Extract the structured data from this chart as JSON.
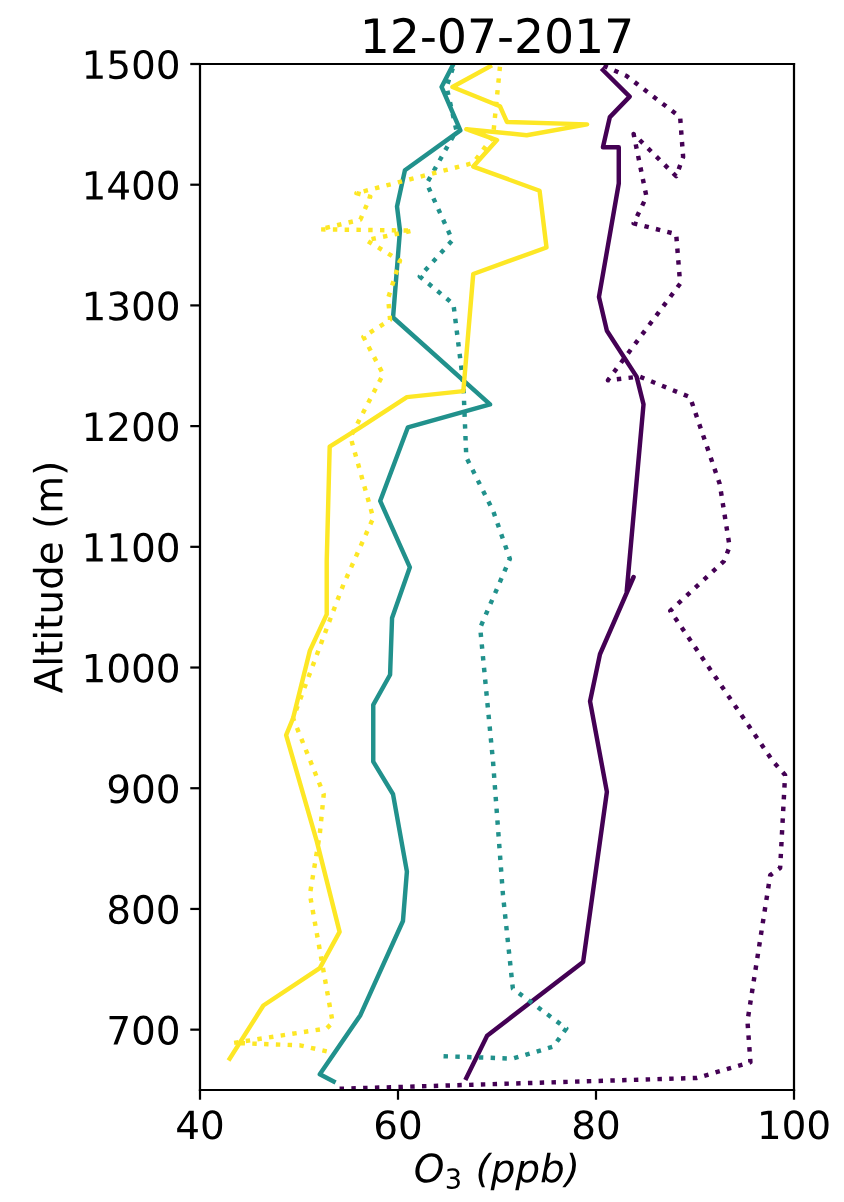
{
  "chart_data": {
    "type": "line",
    "title": "12-07-2017",
    "xlabel": "O$_{3}$ (ppb)",
    "ylabel": "Altitude (m)",
    "xlim": [
      40,
      100
    ],
    "xticks": [
      40,
      60,
      80,
      100
    ],
    "ylim": [
      650,
      1500
    ],
    "yticks": [
      700,
      800,
      900,
      1000,
      1100,
      1200,
      1300,
      1400,
      1500
    ],
    "grid": false,
    "legend": false,
    "marker": "none",
    "series": [
      {
        "color": "#440154",
        "line_style": "solid",
        "x": [
          66.9,
          69.0,
          78.7,
          81.1,
          79.4,
          80.4,
          83.8,
          83.1,
          84.8,
          84.1,
          81.1,
          80.3,
          82.3,
          82.3,
          80.7,
          81.4,
          83.4,
          80.7
        ],
        "values": [
          660,
          695,
          756,
          897,
          972,
          1011,
          1075,
          1063,
          1218,
          1241,
          1279,
          1307,
          1401,
          1431,
          1431,
          1456,
          1473,
          1495
        ]
      },
      {
        "color": "#440154",
        "line_style": "dotted",
        "x": [
          54.1,
          90.2,
          95.6,
          95.3,
          97.6,
          98.6,
          99.1,
          97.9,
          87.5,
          92.9,
          93.5,
          92.5,
          89.5,
          84.4,
          81.2,
          88.5,
          88.1,
          83.8,
          85.1,
          83.8,
          88.1,
          88.8,
          88.5,
          83.1,
          80.4
        ],
        "values": [
          651,
          660,
          673,
          707,
          828,
          834,
          911,
          922,
          1047,
          1088,
          1100,
          1152,
          1224,
          1241,
          1238,
          1318,
          1359,
          1368,
          1390,
          1442,
          1407,
          1423,
          1456,
          1490,
          1500
        ]
      },
      {
        "color": "#21918c",
        "line_style": "solid",
        "x": [
          53.5,
          52.1,
          56.2,
          60.5,
          60.9,
          59.5,
          57.5,
          57.5,
          59.2,
          59.4,
          61.2,
          58.2,
          61.0,
          69.3,
          59.5,
          60.2,
          59.9,
          60.7,
          66.3,
          64.4,
          65.6
        ],
        "values": [
          657,
          663,
          712,
          790,
          831,
          895,
          922,
          969,
          994,
          1041,
          1083,
          1138,
          1199,
          1218,
          1290,
          1362,
          1382,
          1412,
          1445,
          1481,
          1500
        ]
      },
      {
        "color": "#21918c",
        "line_style": "dotted",
        "x": [
          64.6,
          71.6,
          75.7,
          77.0,
          71.6,
          70.6,
          69.6,
          68.3,
          71.3,
          69.6,
          66.9,
          66.6,
          65.6,
          62.2,
          65.5,
          62.9,
          65.9,
          64.9,
          65.6
        ],
        "values": [
          678,
          676,
          686,
          701,
          734,
          812,
          922,
          1033,
          1090,
          1130,
          1174,
          1235,
          1301,
          1324,
          1354,
          1401,
          1445,
          1481,
          1498
        ]
      },
      {
        "color": "#fde725",
        "line_style": "solid",
        "x": [
          43.0,
          46.4,
          52.1,
          54.1,
          51.8,
          48.7,
          49.4,
          51.1,
          52.8,
          52.8,
          53.1,
          56.2,
          60.9,
          66.6,
          67.6,
          75.0,
          74.3,
          67.6,
          70.0,
          66.9,
          73.0,
          79.1,
          71.0,
          70.3,
          65.5,
          69.3
        ],
        "values": [
          676,
          720,
          751,
          781,
          856,
          944,
          958,
          1014,
          1044,
          1088,
          1183,
          1199,
          1224,
          1229,
          1326,
          1348,
          1395,
          1415,
          1437,
          1446,
          1441,
          1450,
          1452,
          1465,
          1481,
          1498
        ]
      },
      {
        "color": "#fde725",
        "line_style": "dotted",
        "x": [
          52.8,
          50.1,
          43.4,
          52.8,
          53.4,
          51.1,
          52.1,
          52.5,
          49.4,
          53.1,
          54.5,
          57.5,
          55.2,
          58.5,
          56.5,
          59.2,
          59.0,
          60.2,
          56.8,
          61.5,
          52.1,
          56.2,
          57.2,
          55.8,
          67.6,
          69.6,
          70.3
        ],
        "values": [
          682,
          687,
          689,
          701,
          706,
          812,
          862,
          895,
          958,
          1039,
          1069,
          1124,
          1191,
          1243,
          1274,
          1288,
          1306,
          1337,
          1354,
          1362,
          1363,
          1371,
          1390,
          1393,
          1418,
          1440,
          1498
        ]
      }
    ]
  }
}
